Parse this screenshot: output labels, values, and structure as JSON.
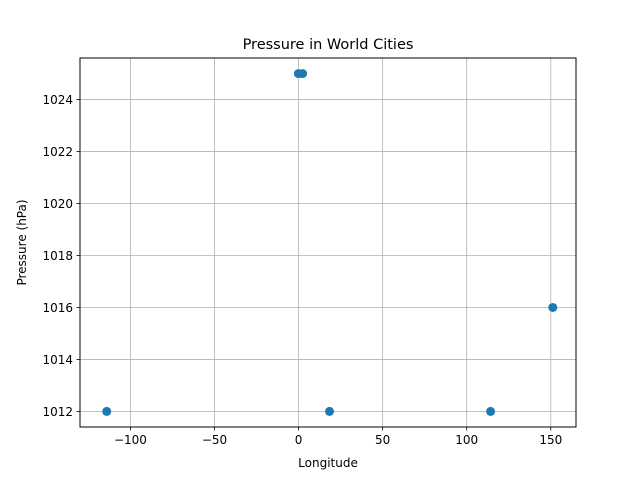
{
  "chart_data": {
    "type": "scatter",
    "title": "Pressure in World Cities",
    "xlabel": "Longitude",
    "ylabel": "Pressure (hPa)",
    "xlim": [
      -130,
      165
    ],
    "ylim": [
      1011.4,
      1025.6
    ],
    "xticks": [
      -100,
      -50,
      0,
      50,
      100,
      150
    ],
    "xtick_labels": [
      "−100",
      "−50",
      "0",
      "50",
      "100",
      "150"
    ],
    "yticks": [
      1012,
      1014,
      1016,
      1018,
      1020,
      1022,
      1024
    ],
    "ytick_labels": [
      "1012",
      "1014",
      "1016",
      "1018",
      "1020",
      "1022",
      "1024"
    ],
    "grid": true,
    "marker_color": "#1f77b4",
    "points": [
      {
        "x": -0.1,
        "y": 1025
      },
      {
        "x": 2.4,
        "y": 1025
      },
      {
        "x": 151.2,
        "y": 1016
      },
      {
        "x": -114.1,
        "y": 1012
      },
      {
        "x": 18.4,
        "y": 1012
      },
      {
        "x": 114.2,
        "y": 1012
      }
    ]
  }
}
